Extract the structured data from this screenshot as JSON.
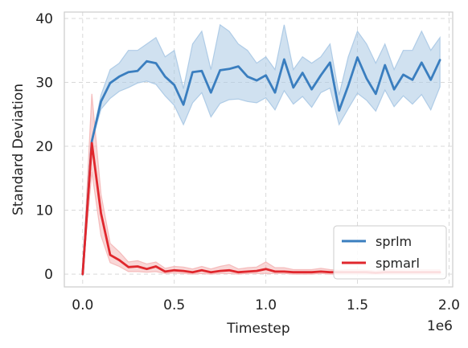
{
  "chart_data": {
    "type": "line",
    "title": "",
    "xlabel": "Timestep",
    "ylabel": "Standard Deviation",
    "x_offset_label": "1e6",
    "xlim": [
      -0.1,
      2.02
    ],
    "ylim": [
      -2,
      41
    ],
    "x_ticks": [
      0.0,
      0.5,
      1.0,
      1.5,
      2.0
    ],
    "x_tick_labels": [
      "0.0",
      "0.5",
      "1.0",
      "1.5",
      "2.0"
    ],
    "y_ticks": [
      0,
      10,
      20,
      30,
      40
    ],
    "y_tick_labels": [
      "0",
      "10",
      "20",
      "30",
      "40"
    ],
    "grid": true,
    "legend_position": "bottom-right",
    "series": [
      {
        "name": "sprlm",
        "color": "#3a7ebf",
        "band_color": "#a9c8e4",
        "x": [
          0.0,
          0.05,
          0.1,
          0.15,
          0.2,
          0.25,
          0.3,
          0.35,
          0.4,
          0.45,
          0.5,
          0.55,
          0.6,
          0.65,
          0.7,
          0.75,
          0.8,
          0.85,
          0.9,
          0.95,
          1.0,
          1.05,
          1.1,
          1.15,
          1.2,
          1.25,
          1.3,
          1.35,
          1.4,
          1.45,
          1.5,
          1.55,
          1.6,
          1.65,
          1.7,
          1.75,
          1.8,
          1.85,
          1.9,
          1.95
        ],
        "values": [
          0,
          20.8,
          27.0,
          29.9,
          30.9,
          31.6,
          31.8,
          33.3,
          33.0,
          30.9,
          29.6,
          26.5,
          31.6,
          31.8,
          28.4,
          31.9,
          32.1,
          32.5,
          30.9,
          30.3,
          31.1,
          28.4,
          33.6,
          29.2,
          31.5,
          28.9,
          31.1,
          33.1,
          25.6,
          29.5,
          33.9,
          30.6,
          28.2,
          32.7,
          28.9,
          31.2,
          30.4,
          33.1,
          30.4,
          33.5
        ],
        "lower": [
          0,
          20.8,
          25.8,
          27.5,
          28.6,
          29.2,
          29.9,
          30.2,
          29.7,
          27.9,
          26.4,
          23.4,
          26.8,
          28.4,
          24.6,
          26.7,
          27.3,
          27.4,
          27.0,
          26.8,
          27.6,
          25.7,
          28.7,
          26.6,
          27.8,
          26.1,
          28.4,
          29.1,
          23.4,
          25.9,
          28.3,
          27.2,
          25.5,
          28.8,
          26.2,
          27.9,
          26.6,
          28.1,
          25.7,
          29.3
        ],
        "upper": [
          0,
          21.0,
          28.0,
          32.0,
          33.0,
          35.0,
          35.0,
          36.0,
          37.0,
          34.0,
          35.0,
          29.0,
          36.0,
          38.0,
          32.0,
          39.0,
          38.0,
          36.0,
          35.0,
          33.0,
          34.0,
          32.0,
          39.0,
          32.0,
          34.0,
          33.0,
          34.0,
          36.0,
          28.0,
          34.0,
          38.0,
          36.0,
          33.0,
          36.0,
          32.0,
          35.0,
          35.0,
          38.0,
          35.0,
          37.0
        ]
      },
      {
        "name": "spmarl",
        "color": "#e0272d",
        "band_color": "#f4b6b6",
        "x": [
          0.0,
          0.05,
          0.1,
          0.15,
          0.2,
          0.25,
          0.3,
          0.35,
          0.4,
          0.45,
          0.5,
          0.55,
          0.6,
          0.65,
          0.7,
          0.75,
          0.8,
          0.85,
          0.9,
          0.95,
          1.0,
          1.05,
          1.1,
          1.15,
          1.2,
          1.25,
          1.3,
          1.35,
          1.4,
          1.45,
          1.5,
          1.55,
          1.6,
          1.65,
          1.7,
          1.75,
          1.8,
          1.85,
          1.9,
          1.95
        ],
        "values": [
          0,
          20.5,
          9.5,
          3.0,
          2.2,
          1.1,
          1.2,
          0.8,
          1.2,
          0.4,
          0.6,
          0.5,
          0.3,
          0.6,
          0.3,
          0.5,
          0.6,
          0.3,
          0.4,
          0.5,
          0.8,
          0.4,
          0.4,
          0.3,
          0.3,
          0.3,
          0.4,
          0.3,
          0.3,
          0.3,
          0.3,
          0.3,
          0.2,
          0.3,
          0.3,
          0.3,
          0.3,
          0.3,
          0.3,
          0.3
        ],
        "lower": [
          0,
          16.0,
          6.0,
          1.8,
          1.2,
          0.4,
          0.4,
          0.3,
          0.4,
          0.1,
          0.2,
          0.1,
          0.0,
          0.1,
          0.0,
          0.1,
          0.1,
          0.0,
          0.1,
          0.1,
          0.1,
          0.1,
          0.1,
          0.0,
          0.0,
          0.0,
          0.1,
          0.0,
          0.0,
          0.0,
          0.0,
          0.0,
          0.0,
          0.0,
          0.0,
          0.0,
          0.0,
          0.0,
          0.0,
          0.0
        ],
        "upper": [
          0,
          28.2,
          12.5,
          4.8,
          3.5,
          1.9,
          2.1,
          1.6,
          1.9,
          0.9,
          1.2,
          1.1,
          0.8,
          1.2,
          0.8,
          1.2,
          1.5,
          0.8,
          1.0,
          1.1,
          1.9,
          1.0,
          1.0,
          0.7,
          0.7,
          0.7,
          0.9,
          0.7,
          0.6,
          0.7,
          0.7,
          0.6,
          0.5,
          0.7,
          0.7,
          0.8,
          0.8,
          0.7,
          0.7,
          0.7
        ]
      }
    ]
  }
}
